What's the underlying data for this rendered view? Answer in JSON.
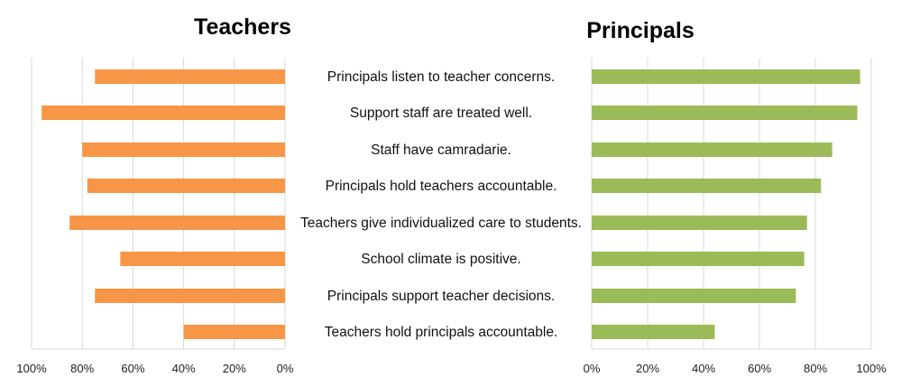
{
  "chart_data": [
    {
      "type": "bar",
      "orientation": "horizontal",
      "title": "Teachers",
      "direction": "reversed",
      "categories": [
        "Principals listen to teacher concerns.",
        "Support staff are treated well.",
        "Staff have camradarie.",
        "Principals hold teachers accountable.",
        "Teachers give individualized care to students.",
        "School climate is positive.",
        "Principals support teacher decisions.",
        "Teachers hold principals accountable."
      ],
      "values": [
        75,
        96,
        80,
        78,
        85,
        65,
        75,
        40
      ],
      "xlim": [
        0,
        100
      ],
      "ticks": [
        "100%",
        "80%",
        "60%",
        "40%",
        "20%",
        "0%"
      ],
      "tick_values": [
        100,
        80,
        60,
        40,
        20,
        0
      ],
      "color": "#F79646",
      "grid": true
    },
    {
      "type": "bar",
      "orientation": "horizontal",
      "title": "Principals",
      "direction": "normal",
      "categories": [
        "Principals listen to teacher concerns.",
        "Support staff are treated well.",
        "Staff have camradarie.",
        "Principals hold teachers accountable.",
        "Teachers give individualized care to students.",
        "School climate is positive.",
        "Principals support teacher decisions.",
        "Teachers hold principals accountable."
      ],
      "values": [
        96,
        95,
        86,
        82,
        77,
        76,
        73,
        44
      ],
      "xlim": [
        0,
        100
      ],
      "ticks": [
        "0%",
        "20%",
        "40%",
        "60%",
        "80%",
        "100%"
      ],
      "tick_values": [
        0,
        20,
        40,
        60,
        80,
        100
      ],
      "color": "#9BBB59",
      "grid": true
    }
  ]
}
